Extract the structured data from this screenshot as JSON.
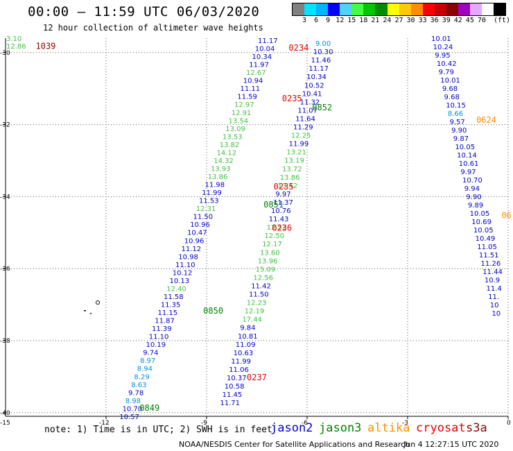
{
  "header": {
    "title": "00:00 – 11:59 UTC 06/03/2020",
    "subtitle": "12 hour collection of altimeter wave heights"
  },
  "legend": {
    "unit": "(ft)",
    "ticks": [
      "3",
      "6",
      "9",
      "12",
      "15",
      "18",
      "21",
      "24",
      "27",
      "30",
      "33",
      "36",
      "39",
      "42",
      "45",
      "70"
    ],
    "colors": [
      "#808080",
      "#00e5ff",
      "#00b4ff",
      "#0000ff",
      "#50d2ff",
      "#40ff40",
      "#00c800",
      "#008c00",
      "#ffff00",
      "#ffc800",
      "#ff8c00",
      "#ff0000",
      "#c80000",
      "#8c0000",
      "#a000c0",
      "#e8a8ff",
      "#ffffff",
      "#000000"
    ]
  },
  "axes": {
    "lat_labels": [
      "-30",
      "-32",
      "-34",
      "-36",
      "-38",
      "-40"
    ],
    "lat_values": [
      -30,
      -32,
      -34,
      -36,
      -38,
      -40
    ],
    "lat_bottom_label": "-15",
    "lon_labels": [
      "-12",
      "-9",
      "-6",
      "-3",
      "0"
    ],
    "lon_values": [
      -12,
      -9,
      -6,
      -3,
      0
    ]
  },
  "satellites": [
    {
      "name": "jason2",
      "color": "#0000c8"
    },
    {
      "name": "jason3",
      "color": "#008000"
    },
    {
      "name": "altika",
      "color": "#ff8c00"
    },
    {
      "name": "cryosat",
      "color": "#e00000"
    },
    {
      "name": "s3a",
      "color": "#8b0000"
    }
  ],
  "footnote": "note: 1) Time is in UTC; 2) SWH is in feet",
  "credit": "NOAA/NESDIS Center for Satellite Applications and Research",
  "date_stamp": "Jun  4 12:27:15 UTC 2020",
  "time_labels": [
    {
      "text": "1039",
      "color": "#8b0000",
      "lon": -14.1,
      "lat": -29.9
    },
    {
      "text": "0234",
      "color": "#e00000",
      "lon": -6.55,
      "lat": -29.95
    },
    {
      "text": "0235",
      "color": "#e00000",
      "lon": -6.75,
      "lat": -31.35
    },
    {
      "text": "0852",
      "color": "#008000",
      "lon": -5.85,
      "lat": -31.6
    },
    {
      "text": "0624",
      "color": "#ff8c00",
      "lon": -0.95,
      "lat": -31.95
    },
    {
      "text": "0235",
      "color": "#e00000",
      "lon": -7.0,
      "lat": -33.8
    },
    {
      "text": "0851",
      "color": "#008000",
      "lon": -7.3,
      "lat": -34.3
    },
    {
      "text": "0236",
      "color": "#e00000",
      "lon": -7.05,
      "lat": -34.95
    },
    {
      "text": "06",
      "color": "#ff8c00",
      "lon": -0.2,
      "lat": -34.6
    },
    {
      "text": "0850",
      "color": "#008000",
      "lon": -9.1,
      "lat": -37.25
    },
    {
      "text": "0237",
      "color": "#e00000",
      "lon": -7.8,
      "lat": -39.1
    },
    {
      "text": "0849",
      "color": "#008000",
      "lon": -11.0,
      "lat": -39.95
    }
  ],
  "tracks": [
    {
      "id": "track-b1",
      "color": "#0000c8",
      "start_lon": -7.35,
      "start_lat": -29.95,
      "dlon": -0.0,
      "dlat": -0.2,
      "values": [
        "11.17",
        "10.04",
        "10.34",
        "11.97",
        "12.67",
        "10.94",
        "11.11",
        "11.59",
        "12.97",
        "12.91",
        "13.54",
        "13.09",
        "13.53",
        "13.82",
        "14.12",
        "14.32",
        "13.93",
        "13.86",
        "11.98",
        "11.99",
        "11.53",
        "12.31",
        "11.50",
        "10.96",
        "10.47",
        "10.96",
        "11.12",
        "10.98",
        "11.10",
        "10.12",
        "10.13",
        "12.40",
        "11.58",
        "11.35",
        "11.15",
        "11.87",
        "11.39",
        "11.10",
        "10.19",
        "9.74",
        "8.97",
        "8.94",
        "8.29",
        "8.63",
        "9.78",
        "8.98",
        "10.70",
        "10.57"
      ],
      "cols": [
        "#0000c8",
        "#0000c8",
        "#0000c8",
        "#0000c8",
        "#40c040",
        "#0000c8",
        "#0000c8",
        "#0000c8",
        "#40c040",
        "#40c040",
        "#40c040",
        "#40c040",
        "#40c040",
        "#40c040",
        "#40c040",
        "#40c040",
        "#40c040",
        "#40c040",
        "#0000c8",
        "#0000c8",
        "#0000c8",
        "#40c040",
        "#0000c8",
        "#0000c8",
        "#0000c8",
        "#0000c8",
        "#0000c8",
        "#0000c8",
        "#0000c8",
        "#0000c8",
        "#0000c8",
        "#40c040",
        "#0000c8",
        "#0000c8",
        "#0000c8",
        "#0000c8",
        "#0000c8",
        "#0000c8",
        "#0000c8",
        "#0000c8",
        "#0090e0",
        "#0090e0",
        "#0090e0",
        "#0090e0",
        "#0000c8",
        "#0090e0",
        "#0000c8",
        "#0000c8"
      ]
    },
    {
      "id": "track-b2",
      "color": "#0000c8",
      "values": [
        "9.00",
        "10.30",
        "11.46",
        "11.17",
        "10.34",
        "10.52",
        "10.41",
        "11.32",
        "11.07",
        "11.64",
        "11.29",
        "12.25",
        "11.99",
        "13.21",
        "13.19",
        "13.72",
        "13.86",
        "13.42",
        "9.97",
        "11.37",
        "10.76",
        "11.43",
        "12.52",
        "12.50",
        "12.17",
        "13.60",
        "13.96",
        "15.09",
        "12.56",
        "11.42",
        "11.50",
        "12.23",
        "12.19",
        "17.44",
        "9.84",
        "10.81",
        "11.09",
        "10.63",
        "11.99",
        "11.06",
        "10.37",
        "10.58",
        "11.45",
        "11.71"
      ],
      "cols": [
        "#0090e0",
        "#0000c8",
        "#0000c8",
        "#0000c8",
        "#0000c8",
        "#0000c8",
        "#0000c8",
        "#0000c8",
        "#0000c8",
        "#0000c8",
        "#0000c8",
        "#40c040",
        "#0000c8",
        "#40c040",
        "#40c040",
        "#40c040",
        "#40c040",
        "#40c040",
        "#0000c8",
        "#0000c8",
        "#0000c8",
        "#0000c8",
        "#40c040",
        "#40c040",
        "#40c040",
        "#40c040",
        "#40c040",
        "#40c040",
        "#40c040",
        "#0000c8",
        "#0000c8",
        "#40c040",
        "#40c040",
        "#40c040",
        "#0000c8",
        "#0000c8",
        "#0000c8",
        "#0000c8",
        "#0000c8",
        "#0000c8",
        "#0000c8",
        "#0000c8",
        "#0000c8",
        "#0000c8"
      ]
    },
    {
      "id": "track-b3",
      "color": "#0000c8",
      "values": [
        "10.01",
        "10.24",
        "9.95",
        "10.42",
        "9.79",
        "10.01",
        "9.68",
        "9.68",
        "10.15",
        "8.66",
        "9.57",
        "9.90",
        "9.87",
        "10.05",
        "10.14",
        "10.61",
        "9.97",
        "10.70",
        "9.94",
        "9.90",
        "9.89",
        "10.05",
        "10.69",
        "10.05",
        "10.49",
        "11.05",
        "11.51",
        "11.26",
        "11.44",
        "10.9",
        "11.4",
        "11.",
        "10",
        "10"
      ],
      "cols": [
        "#0000c8",
        "#0000c8",
        "#0000c8",
        "#0000c8",
        "#0000c8",
        "#0000c8",
        "#0000c8",
        "#0000c8",
        "#0000c8",
        "#0090e0",
        "#0000c8",
        "#0000c8",
        "#0000c8",
        "#0000c8",
        "#0000c8",
        "#0000c8",
        "#0000c8",
        "#0000c8",
        "#0000c8",
        "#0000c8",
        "#0000c8",
        "#0000c8",
        "#0000c8",
        "#0000c8",
        "#0000c8",
        "#0000c8",
        "#0000c8",
        "#0000c8",
        "#0000c8",
        "#0000c8",
        "#0000c8",
        "#0000c8",
        "#0000c8",
        "#0000c8"
      ]
    },
    {
      "id": "track-edge",
      "values": [
        "3.10",
        "12.86"
      ],
      "cols": [
        "#40c040",
        "#40c040"
      ]
    }
  ]
}
